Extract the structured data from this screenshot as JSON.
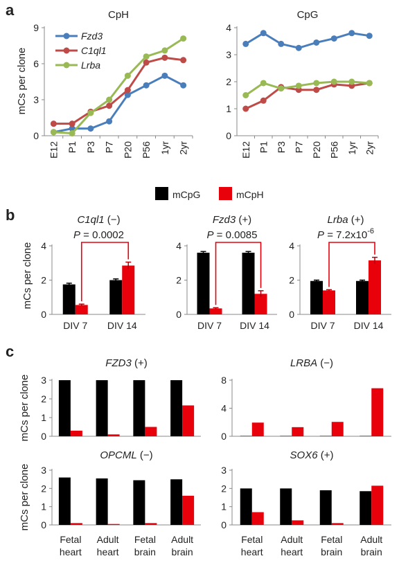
{
  "panels": {
    "a": "a",
    "b": "b",
    "c": "c"
  },
  "ylabel": "mCs per clone",
  "chart_data": [
    {
      "id": "a-cph",
      "type": "line",
      "title": "CpH",
      "x": [
        "E12",
        "P1",
        "P3",
        "P7",
        "P20",
        "P56",
        "1yr",
        "2yr"
      ],
      "ylim": [
        0,
        9
      ],
      "yticks": [
        0,
        3,
        6,
        9
      ],
      "series": [
        {
          "name": "Fzd3",
          "color": "#4a7ebb",
          "values": [
            0.3,
            0.6,
            0.6,
            1.2,
            3.4,
            4.2,
            5.0,
            4.2
          ]
        },
        {
          "name": "C1ql1",
          "color": "#be4b48",
          "values": [
            1.0,
            1.0,
            2.0,
            2.5,
            3.8,
            6.1,
            6.5,
            6.3
          ]
        },
        {
          "name": "Lrba",
          "color": "#98b954",
          "values": [
            0.3,
            0.2,
            1.9,
            3.0,
            5.0,
            6.6,
            7.1,
            8.1
          ]
        }
      ]
    },
    {
      "id": "a-cpg",
      "type": "line",
      "title": "CpG",
      "x": [
        "E12",
        "P1",
        "P3",
        "P7",
        "P20",
        "P56",
        "1yr",
        "2yr"
      ],
      "ylim": [
        0,
        4
      ],
      "yticks": [
        0,
        1,
        2,
        3,
        4
      ],
      "series": [
        {
          "name": "Fzd3",
          "color": "#4a7ebb",
          "values": [
            3.4,
            3.8,
            3.4,
            3.25,
            3.45,
            3.6,
            3.8,
            3.7
          ]
        },
        {
          "name": "C1ql1",
          "color": "#be4b48",
          "values": [
            1.0,
            1.3,
            1.8,
            1.7,
            1.7,
            1.9,
            1.85,
            1.95
          ]
        },
        {
          "name": "Lrba",
          "color": "#98b954",
          "values": [
            1.5,
            1.95,
            1.75,
            1.85,
            1.95,
            2.0,
            2.0,
            1.95
          ]
        }
      ]
    },
    {
      "id": "b-c1ql1",
      "type": "bar",
      "gene": "C1ql1",
      "state": " (−)",
      "p_label": "P",
      "p_value": " = 0.0002",
      "p_exp": "",
      "categories": [
        "DIV 7",
        "DIV 14"
      ],
      "ylim": [
        0,
        4
      ],
      "yticks": [
        0,
        2,
        4
      ],
      "series": [
        {
          "name": "mCpG",
          "color": "#000000",
          "values": [
            1.75,
            2.0
          ],
          "errors": [
            0.07,
            0.07
          ]
        },
        {
          "name": "mCpH",
          "color": "#e8000b",
          "values": [
            0.55,
            2.85
          ],
          "errors": [
            0.05,
            0.2
          ]
        }
      ],
      "bracket": {
        "from": [
          0,
          1
        ],
        "to": [
          1,
          1
        ]
      }
    },
    {
      "id": "b-fzd3",
      "type": "bar",
      "gene": "Fzd3",
      "state": " (+)",
      "p_label": "P",
      "p_value": " = 0.0085",
      "p_exp": "",
      "categories": [
        "DIV 7",
        "DIV 14"
      ],
      "ylim": [
        0,
        4
      ],
      "yticks": [
        0,
        2,
        4
      ],
      "series": [
        {
          "name": "mCpG",
          "color": "#000000",
          "values": [
            3.6,
            3.6
          ],
          "errors": [
            0.07,
            0.07
          ]
        },
        {
          "name": "mCpH",
          "color": "#e8000b",
          "values": [
            0.35,
            1.2
          ],
          "errors": [
            0.04,
            0.18
          ]
        }
      ],
      "bracket": {
        "from": [
          0,
          1
        ],
        "to": [
          1,
          1
        ]
      }
    },
    {
      "id": "b-lrba",
      "type": "bar",
      "gene": "Lrba",
      "state": " (+)",
      "p_label": "P",
      "p_value": " = 7.2x10",
      "p_exp": "-6",
      "categories": [
        "DIV 7",
        "DIV 14"
      ],
      "ylim": [
        0,
        4
      ],
      "yticks": [
        0,
        2,
        4
      ],
      "series": [
        {
          "name": "mCpG",
          "color": "#000000",
          "values": [
            1.95,
            1.95
          ],
          "errors": [
            0.05,
            0.05
          ]
        },
        {
          "name": "mCpH",
          "color": "#e8000b",
          "values": [
            1.4,
            3.15
          ],
          "errors": [
            0.04,
            0.18
          ]
        }
      ],
      "bracket": {
        "from": [
          0,
          1
        ],
        "to": [
          1,
          1
        ]
      }
    },
    {
      "id": "c-fzd3",
      "type": "bar",
      "gene": "FZD3",
      "state": " (+)",
      "categories": [
        "Fetal heart",
        "Adult heart",
        "Fetal brain",
        "Adult brain"
      ],
      "ylim": [
        0,
        3
      ],
      "yticks": [
        0,
        1,
        2,
        3
      ],
      "series": [
        {
          "name": "mCpG",
          "color": "#000000",
          "values": [
            3.0,
            3.0,
            3.0,
            3.0
          ]
        },
        {
          "name": "mCpH",
          "color": "#e8000b",
          "values": [
            0.3,
            0.1,
            0.5,
            1.65
          ]
        }
      ]
    },
    {
      "id": "c-lrba",
      "type": "bar",
      "gene": "LRBA",
      "state": " (−)",
      "categories": [
        "Fetal heart",
        "Adult heart",
        "Fetal brain",
        "Adult brain"
      ],
      "ylim": [
        0,
        8
      ],
      "yticks": [
        0,
        4,
        8
      ],
      "series": [
        {
          "name": "mCpG",
          "color": "#000000",
          "values": [
            0.05,
            0.05,
            0.05,
            0.05
          ]
        },
        {
          "name": "mCpH",
          "color": "#e8000b",
          "values": [
            1.95,
            1.3,
            2.05,
            6.85
          ]
        }
      ]
    },
    {
      "id": "c-opcml",
      "type": "bar",
      "gene": "OPCML",
      "state": " (−)",
      "categories": [
        "Fetal heart",
        "Adult heart",
        "Fetal brain",
        "Adult brain"
      ],
      "ylim": [
        0,
        3
      ],
      "yticks": [
        0,
        1,
        2,
        3
      ],
      "series": [
        {
          "name": "mCpG",
          "color": "#000000",
          "values": [
            2.6,
            2.55,
            2.45,
            2.5
          ]
        },
        {
          "name": "mCpH",
          "color": "#e8000b",
          "values": [
            0.1,
            0.05,
            0.1,
            1.6
          ]
        }
      ]
    },
    {
      "id": "c-sox6",
      "type": "bar",
      "gene": "SOX6",
      "state": " (+)",
      "categories": [
        "Fetal heart",
        "Adult heart",
        "Fetal brain",
        "Adult brain"
      ],
      "ylim": [
        0,
        3
      ],
      "yticks": [
        0,
        1,
        2,
        3
      ],
      "series": [
        {
          "name": "mCpG",
          "color": "#000000",
          "values": [
            2.0,
            2.0,
            1.9,
            1.85
          ]
        },
        {
          "name": "mCpH",
          "color": "#e8000b",
          "values": [
            0.7,
            0.25,
            0.1,
            2.15
          ]
        }
      ]
    }
  ],
  "legend_b": [
    {
      "name": "mCpG",
      "color": "#000000"
    },
    {
      "name": "mCpH",
      "color": "#e8000b"
    }
  ]
}
